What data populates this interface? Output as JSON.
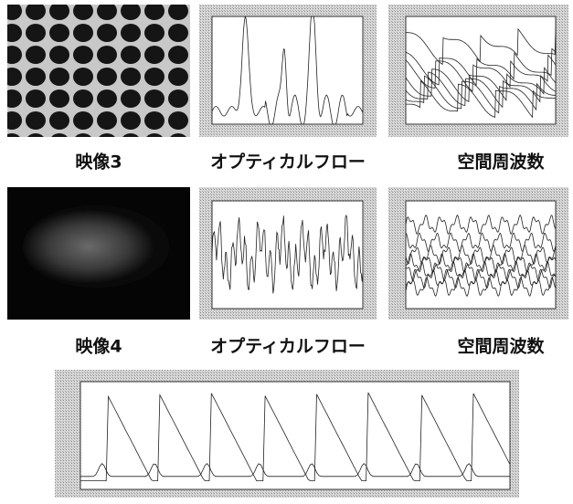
{
  "figure": {
    "rows": [
      {
        "caption_image": "映像3",
        "caption_flow": "オプティカルフロー",
        "caption_freq": "空間周波数"
      },
      {
        "caption_image": "映像4",
        "caption_flow": "オプティカルフロー",
        "caption_freq": "空間周波数"
      }
    ]
  }
}
